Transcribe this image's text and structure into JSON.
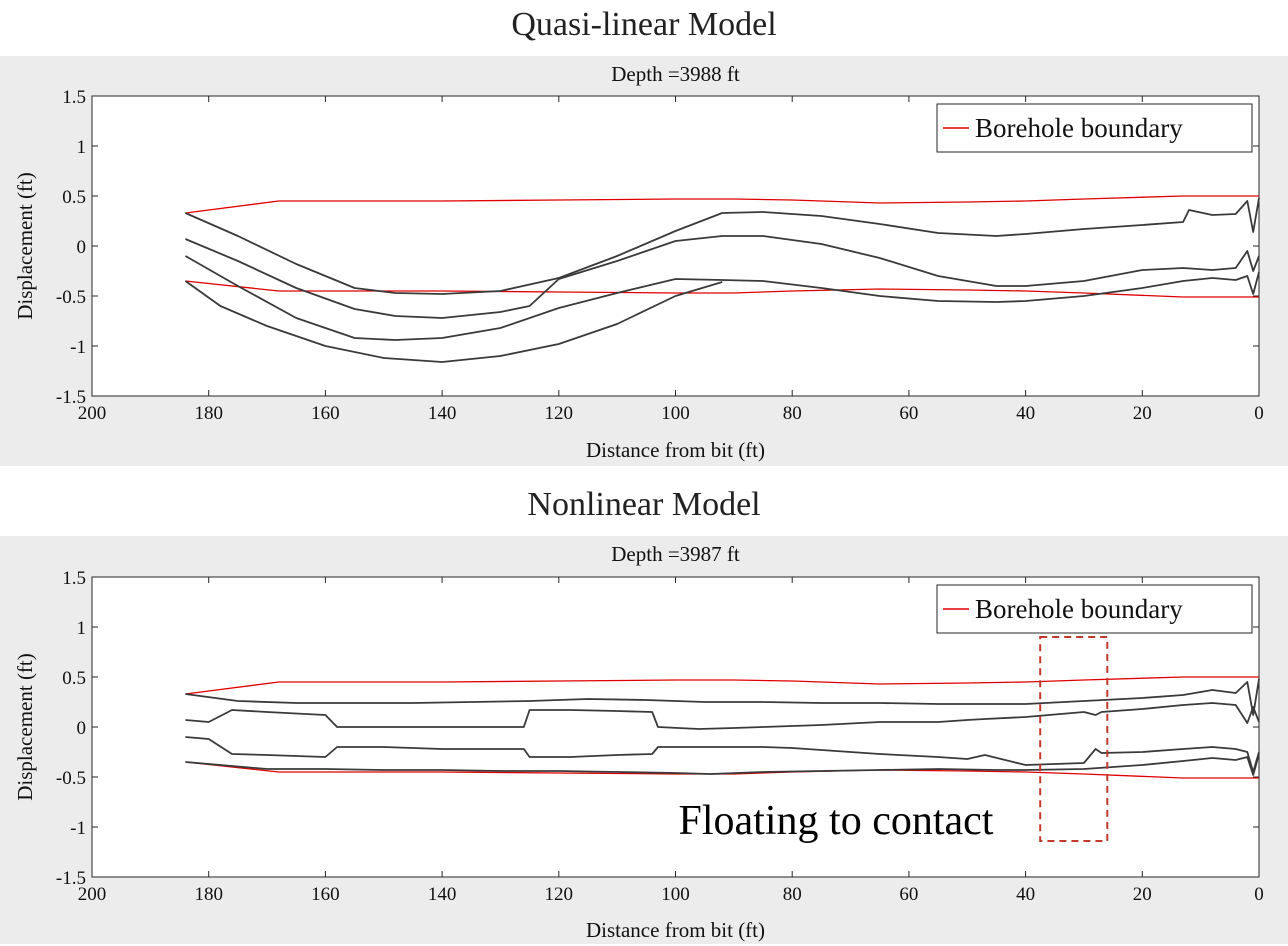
{
  "headings": {
    "top": "Quasi-linear Model",
    "bottom": "Nonlinear Model"
  },
  "annotation": {
    "text": "Floating to contact",
    "box_color": "#c0392b"
  },
  "colors": {
    "boundary": "#e00000",
    "drillstring": "#3a3a3a",
    "panel_background": "#ececec"
  },
  "chart_data": [
    {
      "type": "line",
      "title": "Depth =3988 ft",
      "xlabel": "Distance from bit (ft)",
      "ylabel": "Displacement (ft)",
      "xlim": [
        0,
        200
      ],
      "x_reversed": true,
      "ylim": [
        -1.5,
        1.5
      ],
      "xticks": [
        200,
        180,
        160,
        140,
        120,
        100,
        80,
        60,
        40,
        20,
        0
      ],
      "yticks": [
        1.5,
        1,
        0.5,
        0,
        -0.5,
        -1,
        -1.5
      ],
      "ytick_labels": [
        "1.5",
        "1",
        "0.5",
        "0",
        "-0.5",
        "-1",
        "-1.5"
      ],
      "legend": {
        "entries": [
          "Borehole boundary"
        ],
        "position": "top-right"
      },
      "grid": false,
      "series": [
        {
          "name": "Borehole boundary",
          "color": "#e00000",
          "x": [
            184,
            168,
            140,
            120,
            100,
            90,
            80,
            65,
            50,
            40,
            30,
            13,
            0
          ],
          "y": [
            0.33,
            0.45,
            0.45,
            0.46,
            0.47,
            0.47,
            0.46,
            0.43,
            0.44,
            0.45,
            0.47,
            0.5,
            0.5
          ]
        },
        {
          "color": "#e00000",
          "x": [
            184,
            168,
            140,
            120,
            100,
            90,
            80,
            65,
            50,
            40,
            30,
            13,
            0
          ],
          "y": [
            -0.35,
            -0.45,
            -0.45,
            -0.46,
            -0.47,
            -0.47,
            -0.45,
            -0.43,
            -0.44,
            -0.45,
            -0.47,
            -0.51,
            -0.51
          ]
        },
        {
          "color": "#3a3a3a",
          "x": [
            184,
            175,
            165,
            155,
            148,
            140,
            130,
            120,
            110,
            100,
            92,
            85,
            75,
            65,
            55,
            45,
            40,
            30,
            20,
            13,
            12,
            8,
            4,
            2,
            1,
            0
          ],
          "y": [
            0.33,
            0.1,
            -0.18,
            -0.42,
            -0.47,
            -0.48,
            -0.45,
            -0.32,
            -0.1,
            0.15,
            0.33,
            0.34,
            0.3,
            0.22,
            0.13,
            0.1,
            0.12,
            0.17,
            0.21,
            0.24,
            0.36,
            0.31,
            0.32,
            0.45,
            0.14,
            0.48
          ]
        },
        {
          "color": "#3a3a3a",
          "x": [
            184,
            175,
            165,
            155,
            148,
            140,
            130,
            125,
            120,
            110,
            100,
            92,
            85,
            75,
            65,
            55,
            45,
            40,
            30,
            20,
            13,
            8,
            4,
            2,
            1,
            0
          ],
          "y": [
            0.07,
            -0.15,
            -0.42,
            -0.63,
            -0.7,
            -0.72,
            -0.66,
            -0.6,
            -0.33,
            -0.15,
            0.05,
            0.1,
            0.1,
            0.02,
            -0.12,
            -0.3,
            -0.4,
            -0.4,
            -0.35,
            -0.24,
            -0.22,
            -0.24,
            -0.22,
            -0.05,
            -0.25,
            -0.1
          ]
        },
        {
          "color": "#3a3a3a",
          "x": [
            184,
            175,
            165,
            155,
            148,
            140,
            130,
            120,
            110,
            100,
            92,
            85,
            75,
            65,
            55,
            45,
            40,
            30,
            20,
            13,
            8,
            4,
            2,
            1,
            0
          ],
          "y": [
            -0.1,
            -0.4,
            -0.72,
            -0.92,
            -0.94,
            -0.92,
            -0.82,
            -0.62,
            -0.47,
            -0.33,
            -0.34,
            -0.35,
            -0.42,
            -0.5,
            -0.55,
            -0.56,
            -0.55,
            -0.5,
            -0.42,
            -0.35,
            -0.32,
            -0.34,
            -0.3,
            -0.48,
            -0.26
          ]
        },
        {
          "color": "#3a3a3a",
          "x": [
            184,
            178,
            170,
            160,
            150,
            140,
            130,
            120,
            110,
            100,
            92
          ],
          "y": [
            -0.35,
            -0.6,
            -0.8,
            -1.0,
            -1.12,
            -1.16,
            -1.1,
            -0.98,
            -0.78,
            -0.5,
            -0.36
          ]
        }
      ]
    },
    {
      "type": "line",
      "title": "Depth =3987 ft",
      "xlabel": "Distance from bit (ft)",
      "ylabel": "Displacement (ft)",
      "xlim": [
        0,
        200
      ],
      "x_reversed": true,
      "ylim": [
        -1.5,
        1.5
      ],
      "xticks": [
        200,
        180,
        160,
        140,
        120,
        100,
        80,
        60,
        40,
        20,
        0
      ],
      "yticks": [
        1.5,
        1,
        0.5,
        0,
        -0.5,
        -1,
        -1.5
      ],
      "ytick_labels": [
        "1.5",
        "1",
        "0.5",
        "0",
        "-0.5",
        "-1",
        "-1.5"
      ],
      "legend": {
        "entries": [
          "Borehole boundary"
        ],
        "position": "top-right"
      },
      "grid": false,
      "series": [
        {
          "name": "Borehole boundary",
          "color": "#e00000",
          "x": [
            184,
            168,
            140,
            120,
            100,
            90,
            80,
            65,
            50,
            40,
            30,
            13,
            0
          ],
          "y": [
            0.33,
            0.45,
            0.45,
            0.46,
            0.47,
            0.47,
            0.46,
            0.43,
            0.44,
            0.45,
            0.47,
            0.5,
            0.5
          ]
        },
        {
          "color": "#e00000",
          "x": [
            184,
            168,
            140,
            120,
            100,
            90,
            80,
            65,
            50,
            40,
            30,
            13,
            0
          ],
          "y": [
            -0.35,
            -0.45,
            -0.45,
            -0.46,
            -0.47,
            -0.47,
            -0.45,
            -0.43,
            -0.44,
            -0.45,
            -0.47,
            -0.51,
            -0.51
          ]
        },
        {
          "color": "#3a3a3a",
          "x": [
            184,
            175,
            165,
            155,
            145,
            135,
            125,
            115,
            105,
            95,
            85,
            75,
            65,
            55,
            45,
            40,
            30,
            20,
            13,
            8,
            4,
            2,
            1,
            0
          ],
          "y": [
            0.33,
            0.26,
            0.24,
            0.24,
            0.24,
            0.25,
            0.26,
            0.28,
            0.27,
            0.25,
            0.25,
            0.24,
            0.24,
            0.23,
            0.23,
            0.23,
            0.26,
            0.29,
            0.32,
            0.37,
            0.34,
            0.45,
            0.12,
            0.48
          ]
        },
        {
          "color": "#3a3a3a",
          "x": [
            184,
            180,
            176,
            170,
            160,
            158,
            150,
            140,
            130,
            126,
            125,
            118,
            110,
            104,
            103,
            96,
            90,
            85,
            80,
            75,
            65,
            55,
            50,
            47,
            40,
            30,
            28,
            27,
            20,
            13,
            8,
            4,
            2,
            1,
            0
          ],
          "y": [
            0.07,
            0.05,
            0.17,
            0.15,
            0.12,
            0.0,
            0.0,
            0.0,
            0.0,
            0.0,
            0.17,
            0.17,
            0.16,
            0.15,
            0.0,
            -0.02,
            -0.01,
            0.0,
            0.01,
            0.02,
            0.05,
            0.05,
            0.07,
            0.08,
            0.1,
            0.15,
            0.12,
            0.15,
            0.18,
            0.22,
            0.24,
            0.22,
            0.04,
            0.2,
            0.05
          ]
        },
        {
          "color": "#3a3a3a",
          "x": [
            184,
            180,
            176,
            170,
            160,
            158,
            150,
            140,
            130,
            126,
            125,
            118,
            110,
            104,
            103,
            96,
            90,
            85,
            80,
            75,
            65,
            55,
            50,
            47,
            40,
            30,
            28,
            27,
            20,
            13,
            8,
            4,
            2,
            1,
            0
          ],
          "y": [
            -0.1,
            -0.12,
            -0.27,
            -0.28,
            -0.3,
            -0.2,
            -0.2,
            -0.22,
            -0.22,
            -0.22,
            -0.3,
            -0.3,
            -0.28,
            -0.27,
            -0.2,
            -0.2,
            -0.2,
            -0.2,
            -0.21,
            -0.23,
            -0.27,
            -0.3,
            -0.32,
            -0.28,
            -0.38,
            -0.36,
            -0.22,
            -0.26,
            -0.25,
            -0.22,
            -0.2,
            -0.22,
            -0.25,
            -0.45,
            -0.25
          ]
        },
        {
          "color": "#3a3a3a",
          "x": [
            184,
            170,
            160,
            150,
            140,
            130,
            120,
            110,
            100,
            94,
            85,
            75,
            65,
            55,
            45,
            40,
            30,
            20,
            13,
            8,
            4,
            2,
            1,
            0
          ],
          "y": [
            -0.35,
            -0.42,
            -0.42,
            -0.43,
            -0.43,
            -0.44,
            -0.44,
            -0.45,
            -0.46,
            -0.47,
            -0.45,
            -0.44,
            -0.43,
            -0.42,
            -0.43,
            -0.43,
            -0.42,
            -0.38,
            -0.34,
            -0.31,
            -0.33,
            -0.3,
            -0.48,
            -0.27
          ]
        }
      ]
    }
  ]
}
